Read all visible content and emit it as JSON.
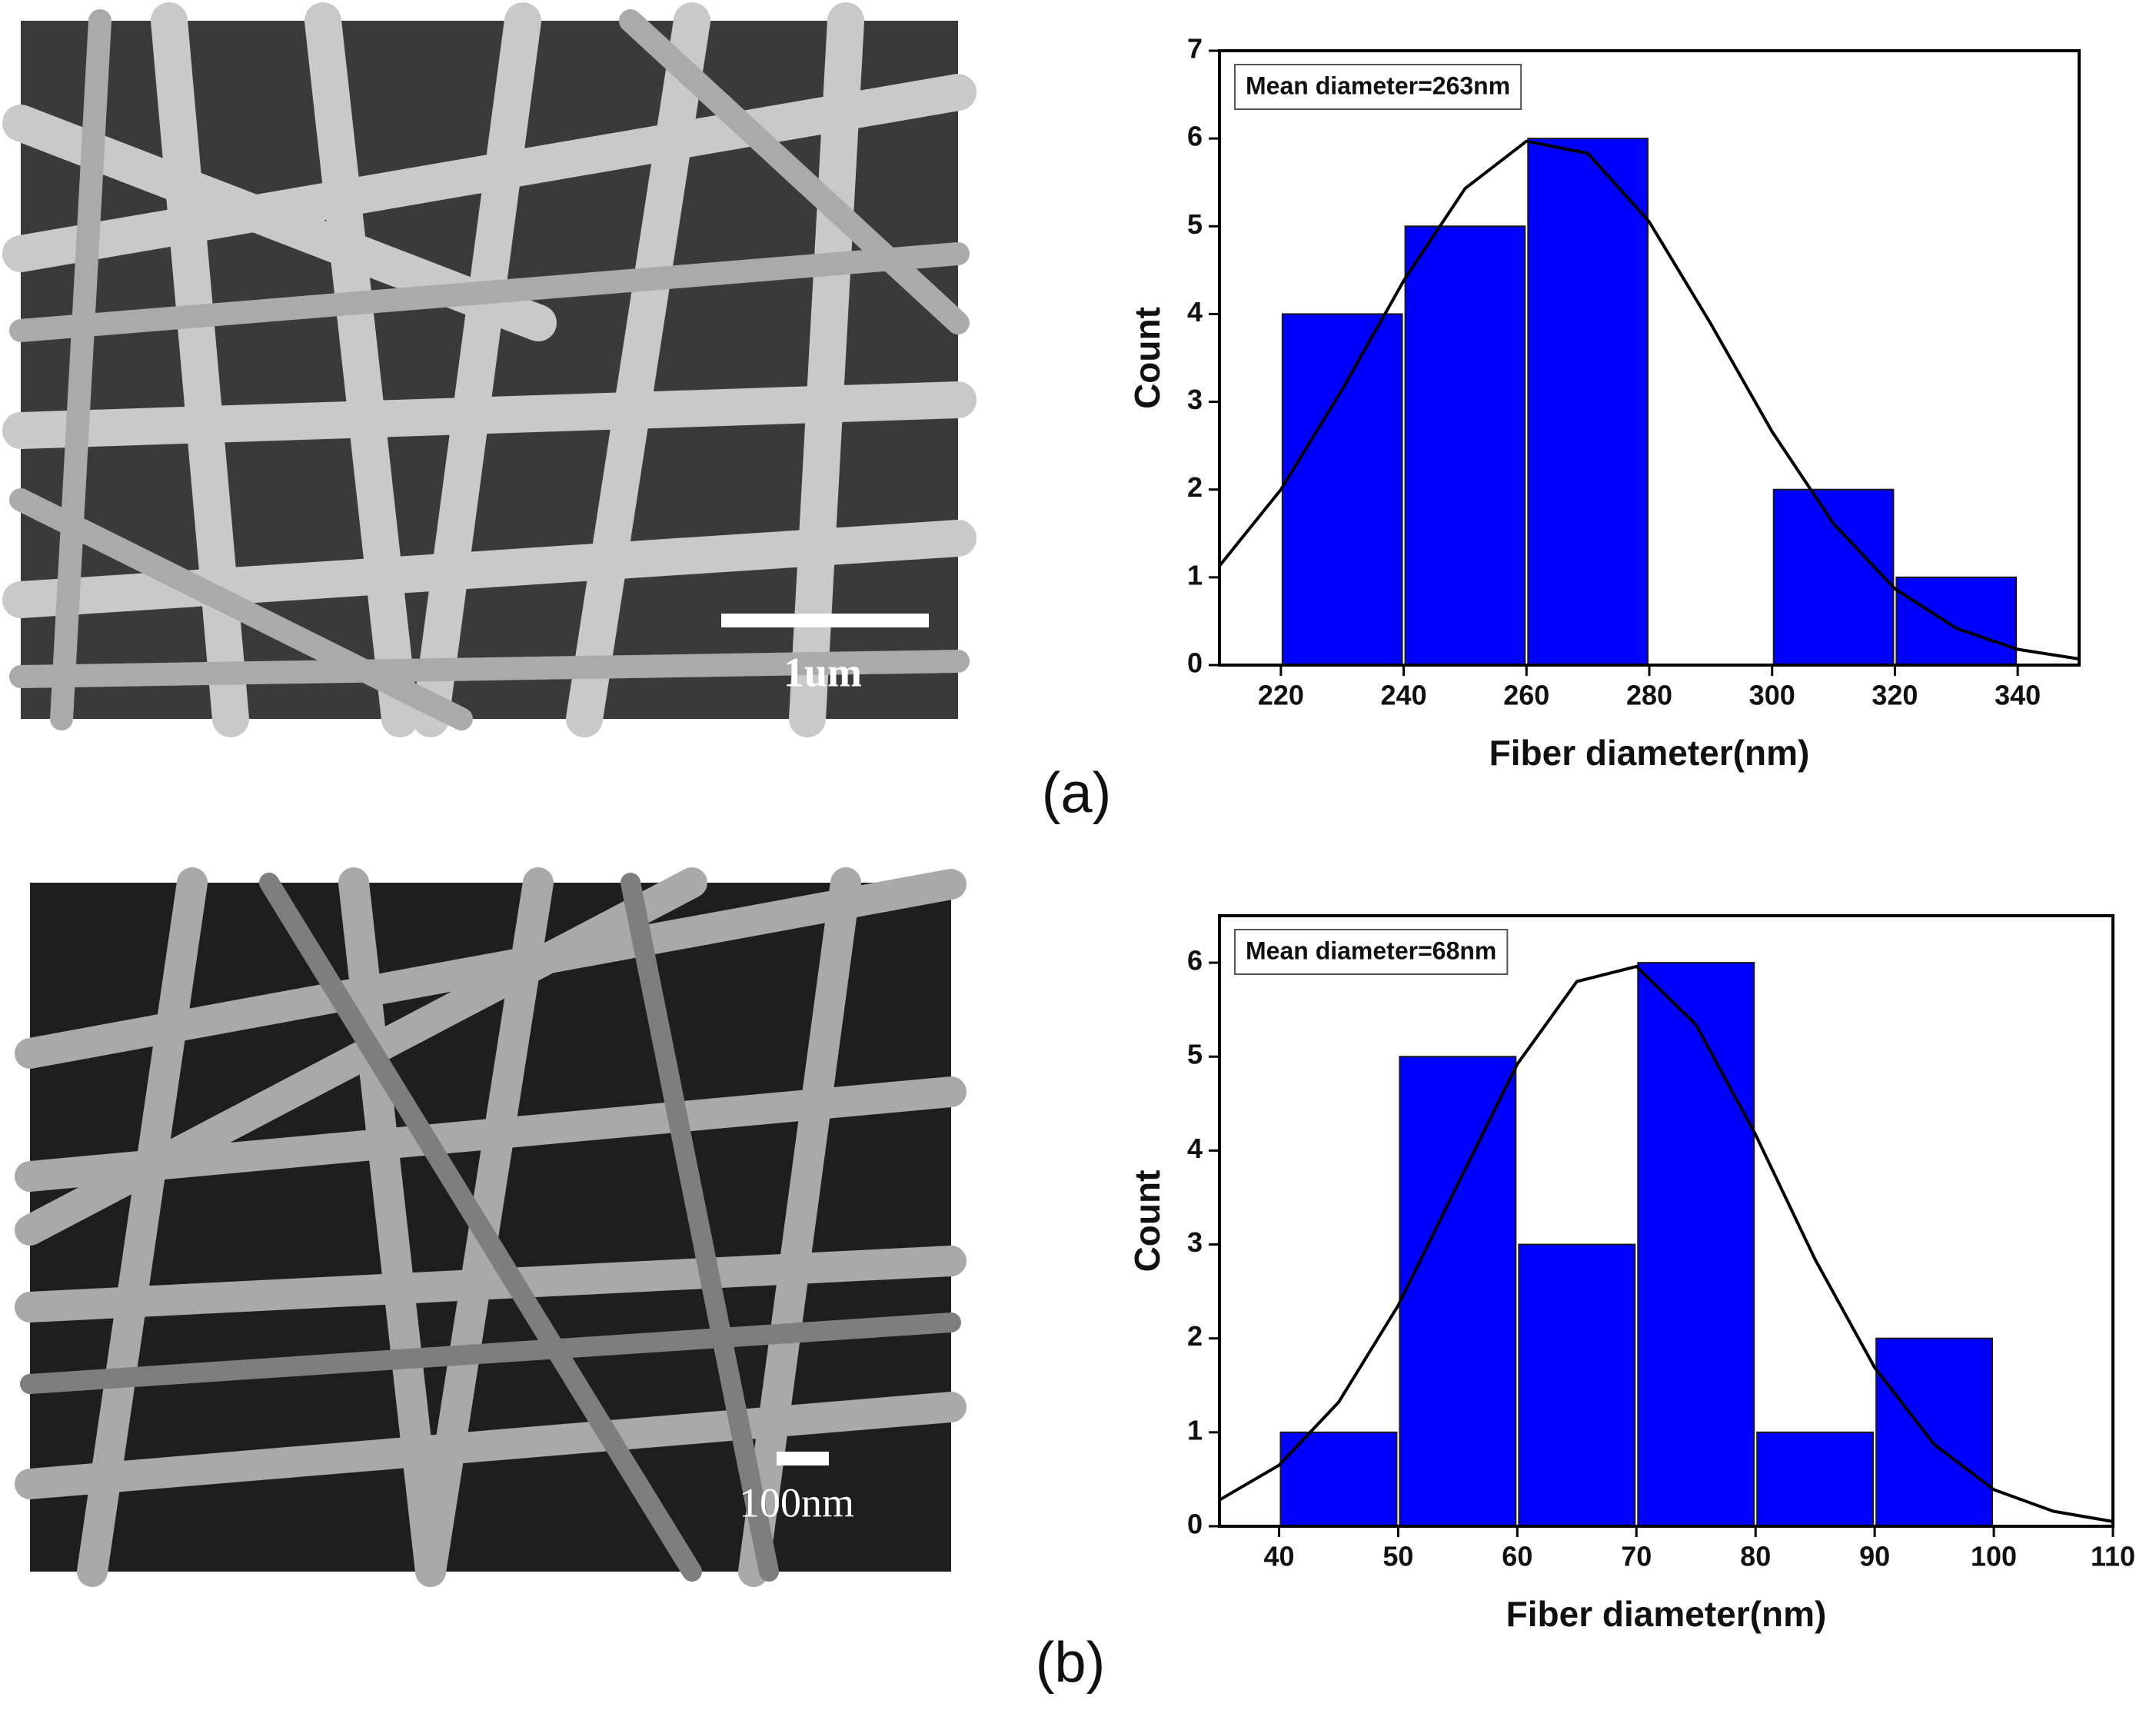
{
  "panels": [
    {
      "label": "(a)",
      "scale_bar": "1um"
    },
    {
      "label": "(b)",
      "scale_bar": "100nm"
    }
  ],
  "chart_data": [
    {
      "type": "histogram",
      "xlabel": "Fiber diameter(nm)",
      "ylabel": "Count",
      "annotation": "Mean diameter=263nm",
      "bins": [
        220,
        240,
        260,
        280,
        300,
        320,
        340
      ],
      "values": [
        4,
        5,
        6,
        0,
        2,
        1
      ],
      "color": "#0000ff",
      "xlim": [
        210,
        350
      ],
      "xticks": [
        220,
        240,
        260,
        280,
        300,
        320,
        340
      ],
      "ylim": [
        0,
        7
      ],
      "yticks": [
        0,
        1,
        2,
        3,
        4,
        5,
        6,
        7
      ],
      "fit": {
        "color": "#000000",
        "x": [
          210,
          220,
          230,
          240,
          250,
          260,
          270,
          280,
          290,
          300,
          310,
          320,
          330,
          340,
          350
        ],
        "values": [
          1.13,
          2.0,
          3.14,
          4.38,
          5.43,
          5.97,
          5.83,
          5.05,
          3.89,
          2.66,
          1.61,
          0.87,
          0.42,
          0.18,
          0.07
        ]
      }
    },
    {
      "type": "histogram",
      "xlabel": "Fiber diameter(nm)",
      "ylabel": "Count",
      "annotation": "Mean diameter=68nm",
      "bins": [
        40,
        50,
        60,
        70,
        80,
        90,
        100
      ],
      "values": [
        1,
        5,
        3,
        6,
        1,
        2
      ],
      "color": "#0000ff",
      "xlim": [
        35,
        110
      ],
      "xticks": [
        40,
        50,
        60,
        70,
        80,
        90,
        100,
        110
      ],
      "ylim": [
        0,
        6.5
      ],
      "yticks": [
        0,
        1,
        2,
        3,
        4,
        5,
        6
      ],
      "fit": {
        "color": "#000000",
        "x": [
          35,
          40,
          45,
          50,
          55,
          60,
          65,
          70,
          75,
          80,
          85,
          90,
          95,
          100,
          105,
          110
        ],
        "values": [
          0.28,
          0.65,
          1.32,
          2.35,
          3.64,
          4.92,
          5.8,
          5.96,
          5.34,
          4.17,
          2.84,
          1.69,
          0.87,
          0.39,
          0.16,
          0.05
        ]
      }
    }
  ]
}
